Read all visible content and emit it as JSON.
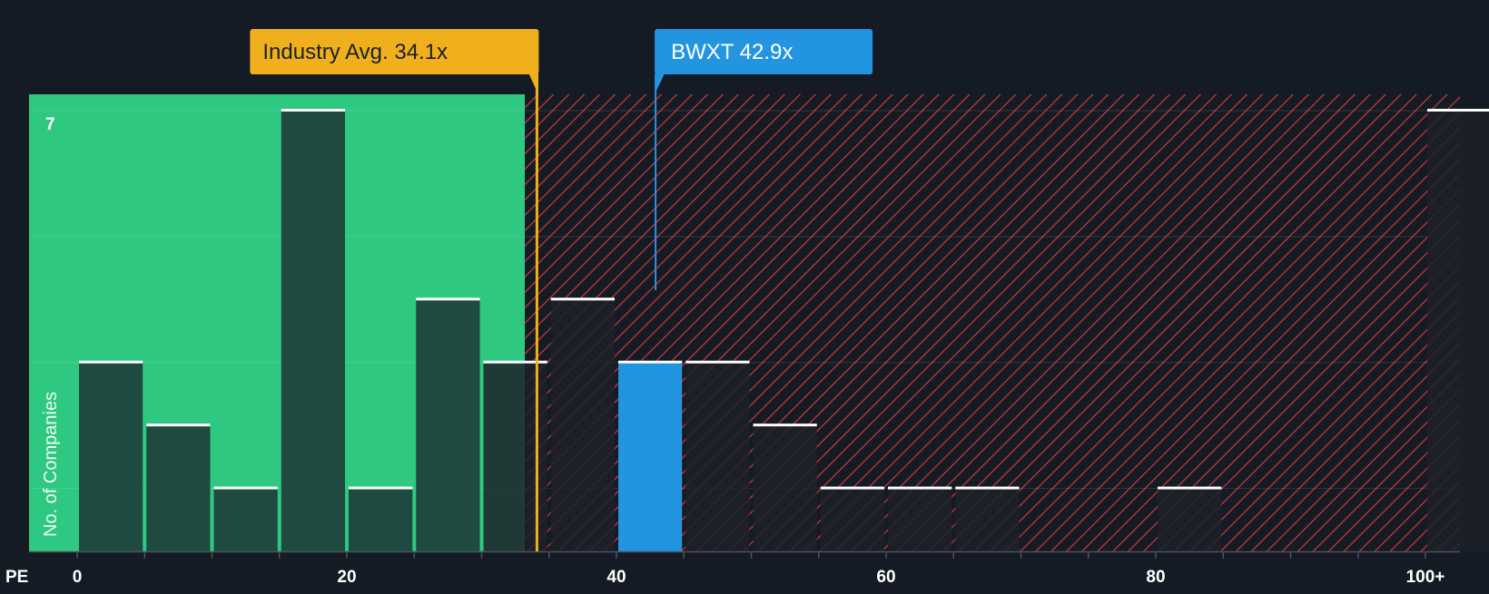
{
  "chart_data": {
    "type": "bar",
    "xlabel": "PE",
    "ylabel": "No. of Companies",
    "bin_width": 5,
    "x_ticks": [
      0,
      20,
      40,
      60,
      80,
      100
    ],
    "x_tick_labels": [
      "0",
      "20",
      "40",
      "60",
      "80",
      "100+"
    ],
    "y_ticks": [
      7
    ],
    "ylim": [
      0,
      7
    ],
    "bins": [
      {
        "start": 0,
        "value": 3
      },
      {
        "start": 5,
        "value": 2
      },
      {
        "start": 10,
        "value": 1
      },
      {
        "start": 15,
        "value": 7
      },
      {
        "start": 20,
        "value": 1
      },
      {
        "start": 25,
        "value": 4
      },
      {
        "start": 30,
        "value": 3
      },
      {
        "start": 35,
        "value": 4
      },
      {
        "start": 40,
        "value": 3,
        "highlight": true
      },
      {
        "start": 45,
        "value": 3
      },
      {
        "start": 50,
        "value": 2
      },
      {
        "start": 55,
        "value": 1
      },
      {
        "start": 60,
        "value": 1
      },
      {
        "start": 65,
        "value": 1
      },
      {
        "start": 70,
        "value": 0
      },
      {
        "start": 75,
        "value": 0
      },
      {
        "start": 80,
        "value": 1
      },
      {
        "start": 85,
        "value": 0
      },
      {
        "start": 90,
        "value": 0
      },
      {
        "start": 95,
        "value": 0
      },
      {
        "start": 100,
        "value": 7
      }
    ],
    "industry_avg": {
      "value": 34.1,
      "label": "Industry Avg. 34.1x"
    },
    "company": {
      "value": 42.9,
      "label": "BWXT 42.9x"
    },
    "fair_zone_end": 33.2,
    "colors": {
      "background": "#151b24",
      "fair_zone": "#2ec880",
      "bar_in_fair_zone": "#1e4a3f",
      "bar_overvalued": "#1c2129",
      "hatch": "#c8383c",
      "highlight": "#2394e0",
      "industry_line": "#f0b01e",
      "bar_cap": "#ffffff",
      "text": "#ffffff",
      "label_dark": "#1b1f27"
    }
  }
}
